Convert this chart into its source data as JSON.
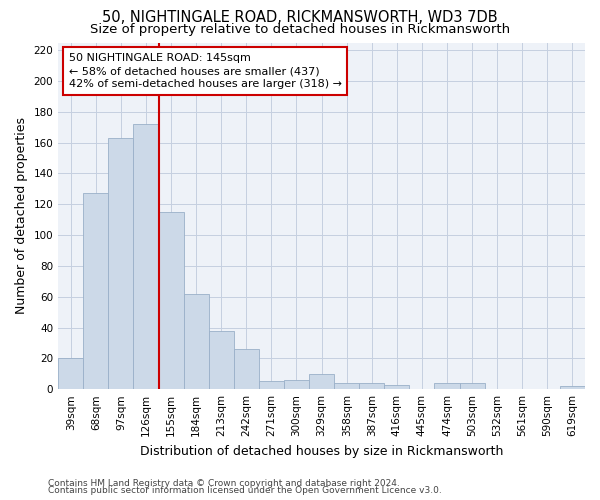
{
  "title1": "50, NIGHTINGALE ROAD, RICKMANSWORTH, WD3 7DB",
  "title2": "Size of property relative to detached houses in Rickmansworth",
  "xlabel": "Distribution of detached houses by size in Rickmansworth",
  "ylabel": "Number of detached properties",
  "footer1": "Contains HM Land Registry data © Crown copyright and database right 2024.",
  "footer2": "Contains public sector information licensed under the Open Government Licence v3.0.",
  "categories": [
    "39sqm",
    "68sqm",
    "97sqm",
    "126sqm",
    "155sqm",
    "184sqm",
    "213sqm",
    "242sqm",
    "271sqm",
    "300sqm",
    "329sqm",
    "358sqm",
    "387sqm",
    "416sqm",
    "445sqm",
    "474sqm",
    "503sqm",
    "532sqm",
    "561sqm",
    "590sqm",
    "619sqm"
  ],
  "values": [
    20,
    127,
    163,
    172,
    115,
    62,
    38,
    26,
    5,
    6,
    10,
    4,
    4,
    3,
    0,
    4,
    4,
    0,
    0,
    0,
    2
  ],
  "bar_color": "#ccd9e8",
  "bar_edge_color": "#9ab0c8",
  "grid_color": "#c5cfe0",
  "annotation_text": "50 NIGHTINGALE ROAD: 145sqm\n← 58% of detached houses are smaller (437)\n42% of semi-detached houses are larger (318) →",
  "annotation_box_color": "#ffffff",
  "annotation_border_color": "#cc0000",
  "vline_color": "#cc0000",
  "vline_x_idx": 3.5,
  "ylim": [
    0,
    225
  ],
  "yticks": [
    0,
    20,
    40,
    60,
    80,
    100,
    120,
    140,
    160,
    180,
    200,
    220
  ],
  "bg_color": "#eef2f8",
  "title_fontsize": 10.5,
  "subtitle_fontsize": 9.5,
  "axis_label_fontsize": 9,
  "tick_fontsize": 7.5,
  "annotation_fontsize": 8,
  "footer_fontsize": 6.5
}
